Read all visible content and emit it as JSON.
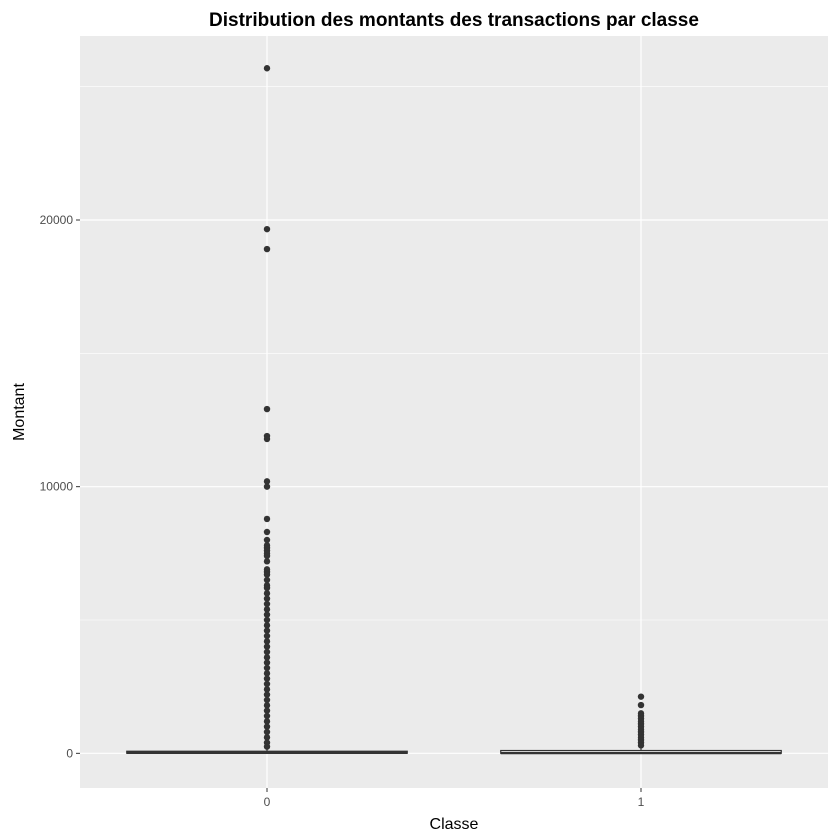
{
  "chart_data": {
    "type": "boxplot",
    "title": "Distribution des montants des transactions par classe",
    "xlabel": "Classe",
    "ylabel": "Montant",
    "categories": [
      "0",
      "1"
    ],
    "ylim": [
      -1300,
      26900
    ],
    "yticks": [
      0,
      10000,
      20000
    ],
    "ytick_labels": [
      "0",
      "10000",
      "20000"
    ],
    "grid": true,
    "legend": "none",
    "colors": {
      "panel": "#ebebeb",
      "grid": "#ffffff",
      "box": "#333333"
    },
    "boxes": [
      {
        "category": "0",
        "q1": 5.6,
        "median": 22,
        "q3": 77,
        "whisker_low": 0,
        "whisker_high": 184.5,
        "outliers": [
          25691,
          19656,
          18910,
          12910,
          11898,
          11790,
          10199,
          10000,
          8790,
          8300,
          8000,
          7800,
          7700,
          7600,
          7500,
          7400,
          7200,
          6900,
          6800,
          6700,
          6500,
          6300,
          6200,
          6000,
          5800,
          5600,
          5400,
          5200,
          5000,
          4800,
          4600,
          4400,
          4200,
          4000,
          3800,
          3600,
          3400,
          3200,
          3000,
          2800,
          2600,
          2400,
          2200,
          2000,
          1800,
          1600,
          1400,
          1200,
          1000,
          800,
          600,
          400,
          250
        ]
      },
      {
        "category": "1",
        "q1": 1,
        "median": 9.25,
        "q3": 105.9,
        "whisker_low": 0,
        "whisker_high": 260,
        "outliers": [
          2126,
          1810,
          1500,
          1400,
          1300,
          1200,
          1100,
          1000,
          900,
          800,
          700,
          600,
          500,
          400,
          300
        ]
      }
    ]
  }
}
